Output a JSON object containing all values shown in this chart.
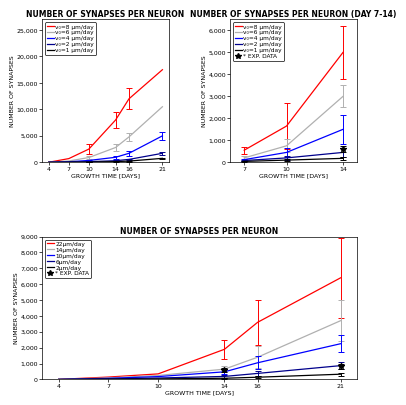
{
  "plot1": {
    "title": "NUMBER OF SYNAPSES PER NEURON",
    "xlabel": "GROWTH TIME [DAYS]",
    "ylabel": "NUMBER OF SYNAPSES",
    "xticks": [
      4,
      7,
      10,
      14,
      16,
      21
    ],
    "xlim": [
      3,
      22
    ],
    "ylim": [
      0,
      27000
    ],
    "yticks": [
      0,
      5000,
      10000,
      15000,
      20000,
      25000
    ],
    "series": [
      {
        "label": "v₀=8 μm/day",
        "color": "#ff0000",
        "x": [
          4,
          7,
          10,
          14,
          16,
          21
        ],
        "y": [
          10,
          700,
          2500,
          8000,
          12000,
          17500
        ],
        "yerr": [
          0,
          0,
          900,
          1600,
          2000,
          0
        ]
      },
      {
        "label": "v₀=6 μm/day",
        "color": "#b0b0b0",
        "x": [
          4,
          7,
          10,
          14,
          16,
          21
        ],
        "y": [
          5,
          250,
          900,
          2800,
          4800,
          10500
        ],
        "yerr": [
          0,
          0,
          250,
          600,
          800,
          0
        ]
      },
      {
        "label": "v₀=4 μm/day",
        "color": "#0000ff",
        "x": [
          4,
          7,
          10,
          14,
          16,
          21
        ],
        "y": [
          2,
          100,
          350,
          950,
          1700,
          5000
        ],
        "yerr": [
          0,
          0,
          100,
          300,
          500,
          700
        ]
      },
      {
        "label": "v₀=2 μm/day",
        "color": "#00008b",
        "x": [
          4,
          7,
          10,
          14,
          16,
          21
        ],
        "y": [
          1,
          40,
          120,
          300,
          550,
          1700
        ],
        "yerr": [
          0,
          0,
          40,
          100,
          150,
          300
        ]
      },
      {
        "label": "v₀=1 μm/day",
        "color": "#000000",
        "x": [
          4,
          7,
          10,
          14,
          16,
          21
        ],
        "y": [
          1,
          15,
          50,
          130,
          230,
          750
        ],
        "yerr": [
          0,
          0,
          15,
          50,
          80,
          150
        ]
      }
    ],
    "err_points": [
      10,
      14,
      16
    ]
  },
  "plot2": {
    "title": "NUMBER OF SYNAPSES PER NEURON (DAY 7-14)",
    "xlabel": "GROWTH TIME [DAYS]",
    "ylabel": "NUMBER OF SYNAPSES",
    "xticks": [
      7,
      10,
      14
    ],
    "xlim": [
      6,
      15
    ],
    "ylim": [
      0,
      6500
    ],
    "yticks": [
      0,
      1000,
      2000,
      3000,
      4000,
      5000,
      6000
    ],
    "series": [
      {
        "label": "v₀=8 μm/day",
        "color": "#ff0000",
        "x": [
          7,
          10,
          14
        ],
        "y": [
          550,
          1650,
          5000
        ],
        "yerr": [
          150,
          1050,
          1200
        ]
      },
      {
        "label": "v₀=6 μm/day",
        "color": "#b0b0b0",
        "x": [
          7,
          10,
          14
        ],
        "y": [
          200,
          750,
          3000
        ],
        "yerr": [
          80,
          300,
          500
        ]
      },
      {
        "label": "v₀=4 μm/day",
        "color": "#0000ff",
        "x": [
          7,
          10,
          14
        ],
        "y": [
          120,
          450,
          1500
        ],
        "yerr": [
          50,
          200,
          650
        ]
      },
      {
        "label": "v₀=2 μm/day",
        "color": "#00008b",
        "x": [
          7,
          10,
          14
        ],
        "y": [
          80,
          200,
          450
        ],
        "yerr": [
          30,
          100,
          200
        ]
      },
      {
        "label": "v₀=1 μm/day",
        "color": "#000000",
        "x": [
          7,
          10,
          14
        ],
        "y": [
          40,
          100,
          180
        ],
        "yerr": [
          20,
          50,
          70
        ]
      }
    ],
    "exp_data": {
      "x": [
        14
      ],
      "y": [
        600
      ],
      "yerr": [
        120
      ]
    }
  },
  "plot3": {
    "title": "NUMBER OF SYNAPSES PER NEURON",
    "xlabel": "GROWTH TIME [DAYS]",
    "ylabel": "NUMBER OF SYNAPSES",
    "xticks": [
      4,
      7,
      10,
      14,
      16,
      21
    ],
    "xlim": [
      3,
      22
    ],
    "ylim": [
      0,
      9000
    ],
    "yticks": [
      0,
      1000,
      2000,
      3000,
      4000,
      5000,
      6000,
      7000,
      8000,
      9000
    ],
    "series": [
      {
        "label": "22μm/day",
        "color": "#ff0000",
        "x": [
          4,
          7,
          10,
          14,
          16,
          21
        ],
        "y": [
          5,
          150,
          350,
          1900,
          3600,
          6400
        ],
        "yerr": [
          0,
          0,
          0,
          600,
          1400,
          2500
        ]
      },
      {
        "label": "14μm/day",
        "color": "#b0b0b0",
        "x": [
          4,
          7,
          10,
          14,
          16,
          21
        ],
        "y": [
          3,
          100,
          250,
          650,
          1400,
          3700
        ],
        "yerr": [
          0,
          0,
          0,
          200,
          700,
          1300
        ]
      },
      {
        "label": "10μm/day",
        "color": "#0000ff",
        "x": [
          4,
          7,
          10,
          14,
          16,
          21
        ],
        "y": [
          2,
          70,
          180,
          480,
          1050,
          2250
        ],
        "yerr": [
          0,
          0,
          0,
          150,
          400,
          550
        ]
      },
      {
        "label": "6μm/day",
        "color": "#00008b",
        "x": [
          4,
          7,
          10,
          14,
          16,
          21
        ],
        "y": [
          1,
          35,
          90,
          190,
          380,
          870
        ],
        "yerr": [
          0,
          0,
          0,
          80,
          140,
          220
        ]
      },
      {
        "label": "2μm/day",
        "color": "#000000",
        "x": [
          4,
          7,
          10,
          14,
          16,
          21
        ],
        "y": [
          0,
          15,
          35,
          75,
          140,
          330
        ],
        "yerr": [
          0,
          0,
          0,
          30,
          55,
          90
        ]
      }
    ],
    "exp_data": {
      "x": [
        14,
        21
      ],
      "y": [
        620,
        820
      ],
      "yerr": [
        120,
        160
      ]
    }
  },
  "background_color": "#ffffff",
  "title_fontsize": 5.5,
  "label_fontsize": 4.5,
  "tick_fontsize": 4.5,
  "legend_fontsize": 4.2
}
